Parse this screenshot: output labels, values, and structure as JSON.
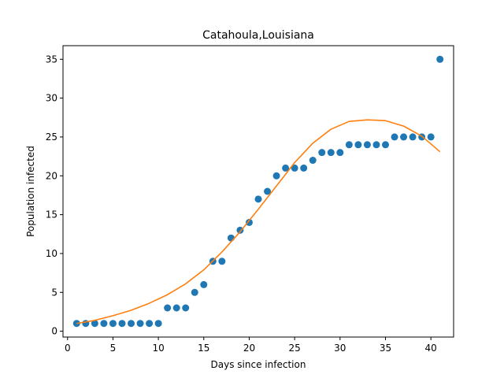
{
  "chart_data": {
    "type": "scatter",
    "title": "Catahoula,Louisiana",
    "xlabel": "Days since infection",
    "ylabel": "Population infected",
    "xlim": [
      -0.5,
      42.5
    ],
    "ylim": [
      -0.75,
      36.75
    ],
    "xticks": [
      0,
      5,
      10,
      15,
      20,
      25,
      30,
      35,
      40
    ],
    "yticks": [
      0,
      5,
      10,
      15,
      20,
      25,
      30,
      35
    ],
    "grid": false,
    "series": [
      {
        "kind": "points",
        "color": "#1f77b4",
        "x": [
          1,
          2,
          3,
          4,
          5,
          6,
          7,
          8,
          9,
          10,
          11,
          12,
          13,
          14,
          15,
          16,
          17,
          18,
          19,
          20,
          21,
          22,
          23,
          24,
          25,
          26,
          27,
          28,
          29,
          30,
          31,
          32,
          33,
          34,
          35,
          36,
          37,
          38,
          39,
          40,
          41
        ],
        "y": [
          1,
          1,
          1,
          1,
          1,
          1,
          1,
          1,
          1,
          1,
          3,
          3,
          3,
          5,
          6,
          9,
          9,
          12,
          13,
          14,
          17,
          18,
          20,
          21,
          21,
          21,
          22,
          23,
          23,
          23,
          24,
          24,
          24,
          24,
          24,
          25,
          25,
          25,
          25,
          25,
          35
        ]
      },
      {
        "kind": "line",
        "color": "#ff7f0e",
        "x": [
          1,
          3,
          5,
          7,
          9,
          11,
          13,
          15,
          17,
          19,
          21,
          23,
          25,
          27,
          29,
          31,
          33,
          35,
          37,
          39,
          41
        ],
        "y": [
          1.0,
          1.4,
          2.0,
          2.7,
          3.6,
          4.7,
          6.1,
          7.9,
          10.2,
          12.8,
          15.7,
          18.7,
          21.7,
          24.2,
          26.0,
          27.0,
          27.2,
          27.1,
          26.4,
          25.1,
          23.1
        ]
      }
    ]
  }
}
